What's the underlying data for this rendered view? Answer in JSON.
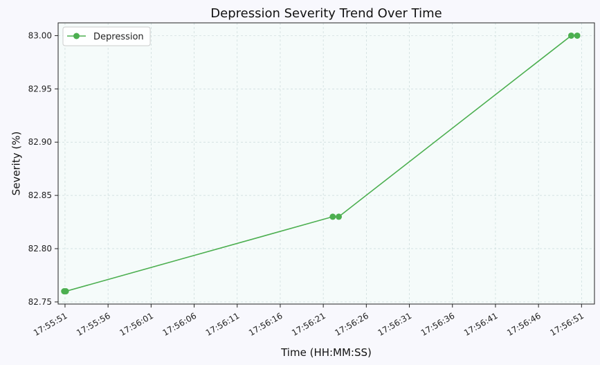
{
  "chart_data": {
    "type": "line",
    "title": "Depression Severity Trend Over Time",
    "xlabel": "Time (HH:MM:SS)",
    "ylabel": "Severity (%)",
    "x_ticks": [
      "17:55:51",
      "17:55:56",
      "17:56:01",
      "17:56:06",
      "17:56:11",
      "17:56:16",
      "17:56:21",
      "17:56:26",
      "17:56:31",
      "17:56:36",
      "17:56:41",
      "17:56:46",
      "17:56:51"
    ],
    "y_ticks": [
      "82.75",
      "82.80",
      "82.85",
      "82.90",
      "82.95",
      "83.00"
    ],
    "ylim": [
      82.748,
      83.012
    ],
    "xlim": [
      "17:55:50.2",
      "17:56:52.5"
    ],
    "grid": true,
    "legend_position": "top-left",
    "colors": {
      "line": "#4caf50",
      "plot_bg": "#f5fbfa",
      "grid": "#c9d9d9"
    },
    "series": [
      {
        "name": "Depression",
        "x": [
          "17:55:50.9",
          "17:55:51.1",
          "17:56:22.1",
          "17:56:22.8",
          "17:56:49.8",
          "17:56:50.5"
        ],
        "y": [
          82.76,
          82.76,
          82.83,
          82.83,
          83.0,
          83.0
        ]
      }
    ]
  }
}
